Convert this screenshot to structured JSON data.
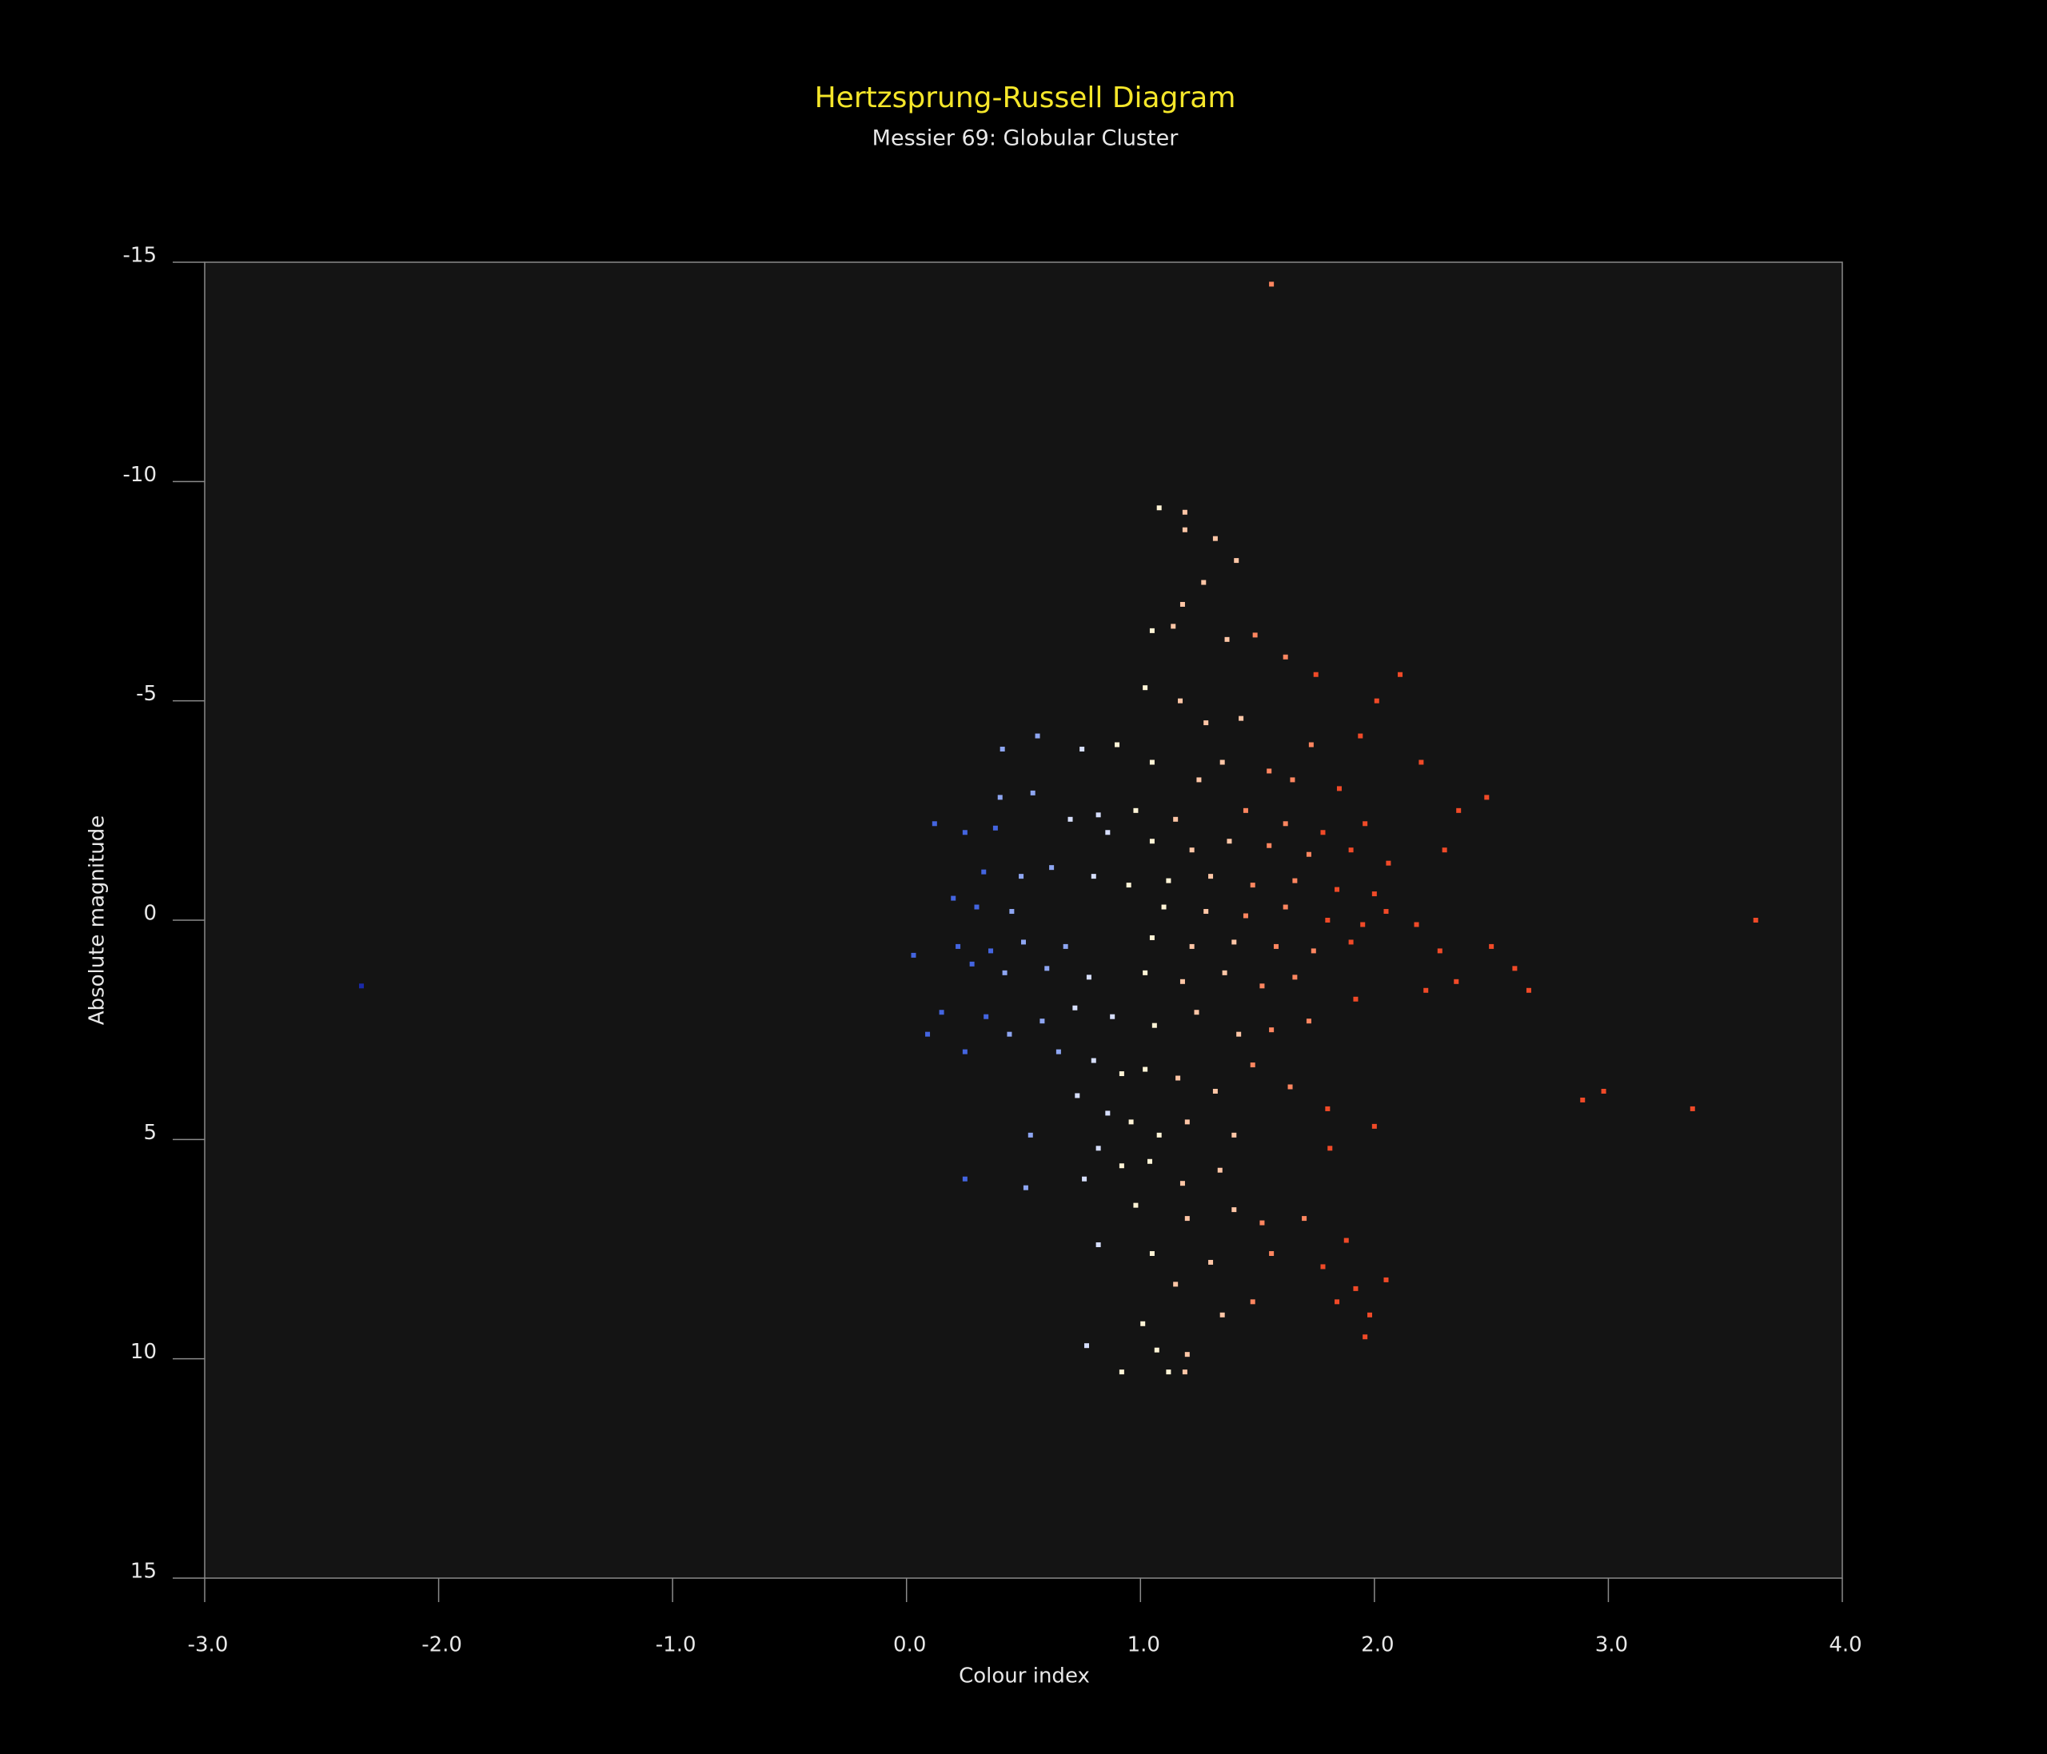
{
  "chart_data": {
    "type": "scatter",
    "title": "Hertzsprung-Russell Diagram",
    "subtitle": "Messier 69: Globular Cluster",
    "x_label": "Colour index",
    "y_label": "Absolute magnitude",
    "title_color": "#f5e62a",
    "xlim": [
      -3,
      4
    ],
    "ylim": [
      -15,
      15
    ],
    "y_inverted": true,
    "xticks": [
      {
        "value": -3,
        "label": "-3.0"
      },
      {
        "value": -2,
        "label": "-2.0"
      },
      {
        "value": -1,
        "label": "-1.0"
      },
      {
        "value": 0,
        "label": "0.0"
      },
      {
        "value": 1,
        "label": "1.0"
      },
      {
        "value": 2,
        "label": "2.0"
      },
      {
        "value": 3,
        "label": "3.0"
      },
      {
        "value": 4,
        "label": "4.0"
      }
    ],
    "yticks": [
      -15,
      -10,
      -5,
      0,
      5,
      10,
      15
    ],
    "grid": false,
    "series": [
      {
        "color": "#1a2aa8",
        "x": [
          -2.33
        ],
        "y": [
          1.5
        ]
      },
      {
        "color": "#4465e0",
        "x": [
          0.12,
          0.25,
          0.38,
          0.33,
          0.2,
          0.3,
          0.22,
          0.36,
          0.03,
          0.28,
          0.15,
          0.34,
          0.09,
          0.25,
          0.25
        ],
        "y": [
          -2.2,
          -2.0,
          -2.1,
          -1.1,
          -0.5,
          -0.3,
          0.6,
          0.7,
          0.8,
          1.0,
          2.1,
          2.2,
          2.6,
          3.0,
          5.9
        ]
      },
      {
        "color": "#8ea6f2",
        "x": [
          0.56,
          0.41,
          0.4,
          0.54,
          0.49,
          0.62,
          0.45,
          0.5,
          0.68,
          0.42,
          0.6,
          0.58,
          0.44,
          0.65,
          0.53,
          0.51
        ],
        "y": [
          -4.2,
          -3.9,
          -2.8,
          -2.9,
          -1.0,
          -1.2,
          -0.2,
          0.5,
          0.6,
          1.2,
          1.1,
          2.3,
          2.6,
          3.0,
          4.9,
          6.1
        ]
      },
      {
        "color": "#d6defc",
        "x": [
          0.75,
          0.82,
          0.7,
          0.86,
          0.8,
          0.78,
          0.72,
          0.88,
          0.8,
          0.73,
          0.86,
          0.82,
          0.76,
          0.82,
          0.77
        ],
        "y": [
          -3.9,
          -2.4,
          -2.3,
          -2.0,
          -1.0,
          1.3,
          2.0,
          2.2,
          3.2,
          4.0,
          4.4,
          5.2,
          5.9,
          7.4,
          9.7
        ]
      },
      {
        "color": "#fff4d6",
        "x": [
          1.08,
          1.05,
          1.02,
          0.9,
          1.05,
          0.98,
          1.05,
          0.95,
          1.12,
          1.1,
          1.05,
          1.02,
          1.06,
          0.92,
          1.02,
          0.96,
          1.08,
          0.92,
          1.04,
          0.98,
          1.05,
          1.01,
          1.07,
          0.92,
          1.12
        ],
        "y": [
          -9.4,
          -6.6,
          -5.3,
          -4.0,
          -3.6,
          -2.5,
          -1.8,
          -0.8,
          -0.9,
          -0.3,
          0.4,
          1.2,
          2.4,
          3.5,
          3.4,
          4.6,
          4.9,
          5.6,
          5.5,
          6.5,
          7.6,
          9.2,
          9.8,
          10.3,
          10.3
        ]
      },
      {
        "color": "#ffc6a6",
        "x": [
          1.19,
          1.19,
          1.32,
          1.41,
          1.27,
          1.18,
          1.14,
          1.37,
          1.17,
          1.28,
          1.43,
          1.25,
          1.35,
          1.15,
          1.22,
          1.38,
          1.3,
          1.28,
          1.22,
          1.4,
          1.18,
          1.36,
          1.24,
          1.42,
          1.16,
          1.32,
          1.2,
          1.4,
          1.18,
          1.34,
          1.2,
          1.4,
          1.3,
          1.15,
          1.35,
          1.2,
          1.19
        ],
        "y": [
          -9.3,
          -8.9,
          -8.7,
          -8.2,
          -7.7,
          -7.2,
          -6.7,
          -6.4,
          -5.0,
          -4.5,
          -4.6,
          -3.2,
          -3.6,
          -2.3,
          -1.6,
          -1.8,
          -1.0,
          -0.2,
          0.6,
          0.5,
          1.4,
          1.2,
          2.1,
          2.6,
          3.6,
          3.9,
          4.6,
          4.9,
          6.0,
          5.7,
          6.8,
          6.6,
          7.8,
          8.3,
          9.0,
          9.9,
          10.3
        ]
      },
      {
        "color": "#ff8660",
        "x": [
          1.56,
          1.49,
          1.62,
          1.73,
          1.55,
          1.65,
          1.45,
          1.62,
          1.55,
          1.72,
          1.48,
          1.66,
          1.45,
          1.62,
          1.58,
          1.74,
          1.52,
          1.66,
          1.56,
          1.72,
          1.48,
          1.64,
          1.52,
          1.7,
          1.56,
          1.48
        ],
        "y": [
          -14.5,
          -6.5,
          -6.0,
          -4.0,
          -3.4,
          -3.2,
          -2.5,
          -2.2,
          -1.7,
          -1.5,
          -0.8,
          -0.9,
          -0.1,
          -0.3,
          0.6,
          0.7,
          1.5,
          1.3,
          2.5,
          2.3,
          3.3,
          3.8,
          6.9,
          6.8,
          7.6,
          8.7
        ]
      },
      {
        "color": "#f04a28",
        "x": [
          1.75,
          2.11,
          1.94,
          2.01,
          1.85,
          2.2,
          2.48,
          1.78,
          1.96,
          2.36,
          1.9,
          2.06,
          2.3,
          1.84,
          2.0,
          1.8,
          1.95,
          2.05,
          2.18,
          1.9,
          2.28,
          2.5,
          2.6,
          2.35,
          1.92,
          2.22,
          2.66,
          1.8,
          2.89,
          2.98,
          3.36,
          2.0,
          1.81,
          1.88,
          1.78,
          1.92,
          2.05,
          1.84,
          1.98,
          1.96,
          3.63
        ],
        "y": [
          -5.6,
          -5.6,
          -4.2,
          -5.0,
          -3.0,
          -3.6,
          -2.8,
          -2.0,
          -2.2,
          -2.5,
          -1.6,
          -1.3,
          -1.6,
          -0.7,
          -0.6,
          0.0,
          0.1,
          -0.2,
          0.1,
          0.5,
          0.7,
          0.6,
          1.1,
          1.4,
          1.8,
          1.6,
          1.6,
          4.3,
          4.1,
          3.9,
          4.3,
          4.7,
          5.2,
          7.3,
          7.9,
          8.4,
          8.2,
          8.7,
          9.0,
          9.5,
          0.0
        ]
      }
    ]
  }
}
